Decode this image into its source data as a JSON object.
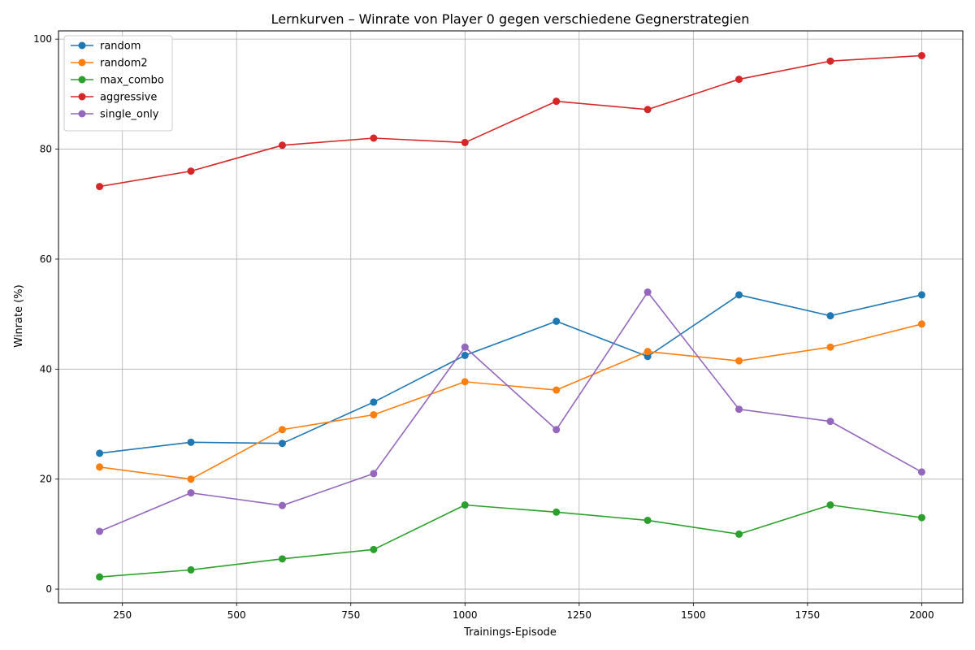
{
  "chart_data": {
    "type": "line",
    "title": "Lernkurven – Winrate von Player 0 gegen verschiedene Gegnerstrategien",
    "xlabel": "Trainings-Episode",
    "ylabel": "Winrate (%)",
    "xlim": [
      110,
      2090
    ],
    "ylim": [
      -2.5,
      101.5
    ],
    "x_ticks": [
      250,
      500,
      750,
      1000,
      1250,
      1500,
      1750,
      2000
    ],
    "y_ticks": [
      0,
      20,
      40,
      60,
      80,
      100
    ],
    "grid": true,
    "legend_position": "upper-left",
    "x": [
      200,
      400,
      600,
      800,
      1000,
      1200,
      1400,
      1600,
      1800,
      2000
    ],
    "series": [
      {
        "name": "random",
        "color": "#1f77b4",
        "values": [
          24.7,
          26.7,
          26.5,
          34.0,
          42.5,
          48.7,
          42.3,
          53.5,
          49.7,
          53.5
        ]
      },
      {
        "name": "random2",
        "color": "#ff7f0e",
        "values": [
          22.2,
          20.0,
          29.0,
          31.7,
          37.7,
          36.2,
          43.2,
          41.5,
          44.0,
          48.2
        ]
      },
      {
        "name": "max_combo",
        "color": "#2ca02c",
        "values": [
          2.2,
          3.5,
          5.5,
          7.2,
          15.3,
          14.0,
          12.5,
          10.0,
          15.3,
          13.0
        ]
      },
      {
        "name": "aggressive",
        "color": "#d62728",
        "values": [
          73.2,
          76.0,
          80.7,
          82.0,
          81.2,
          88.7,
          87.2,
          92.7,
          96.0,
          97.0
        ]
      },
      {
        "name": "single_only",
        "color": "#9467bd",
        "values": [
          10.5,
          17.5,
          15.2,
          21.0,
          44.0,
          29.0,
          54.0,
          32.7,
          30.5,
          21.3
        ]
      }
    ]
  }
}
